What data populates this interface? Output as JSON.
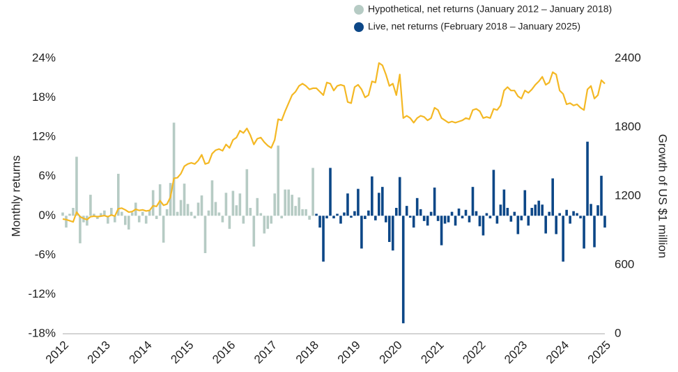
{
  "chart_data": {
    "type": "bar",
    "y_label": "Monthly returns",
    "y2_label": "Growth of US $1 million",
    "xlim": [
      2012,
      2025
    ],
    "xticks": [
      2012,
      2013,
      2014,
      2015,
      2016,
      2017,
      2018,
      2019,
      2020,
      2021,
      2022,
      2023,
      2024,
      2025
    ],
    "ylim": [
      -18,
      24
    ],
    "yticks": [
      {
        "value": -18,
        "label": "-18%"
      },
      {
        "value": -12,
        "label": "-12%"
      },
      {
        "value": -6,
        "label": "-6%"
      },
      {
        "value": 0,
        "label": "0%"
      },
      {
        "value": 6,
        "label": "6%"
      },
      {
        "value": 12,
        "label": "12%"
      },
      {
        "value": 18,
        "label": "18%"
      },
      {
        "value": 24,
        "label": "24%"
      }
    ],
    "y2lim": [
      0,
      2400
    ],
    "y2ticks": [
      0,
      600,
      1200,
      1800,
      2400
    ],
    "x": [
      "2012-01",
      "2012-02",
      "2012-03",
      "2012-04",
      "2012-05",
      "2012-06",
      "2012-07",
      "2012-08",
      "2012-09",
      "2012-10",
      "2012-11",
      "2012-12",
      "2013-01",
      "2013-02",
      "2013-03",
      "2013-04",
      "2013-05",
      "2013-06",
      "2013-07",
      "2013-08",
      "2013-09",
      "2013-10",
      "2013-11",
      "2013-12",
      "2014-01",
      "2014-02",
      "2014-03",
      "2014-04",
      "2014-05",
      "2014-06",
      "2014-07",
      "2014-08",
      "2014-09",
      "2014-10",
      "2014-11",
      "2014-12",
      "2015-01",
      "2015-02",
      "2015-03",
      "2015-04",
      "2015-05",
      "2015-06",
      "2015-07",
      "2015-08",
      "2015-09",
      "2015-10",
      "2015-11",
      "2015-12",
      "2016-01",
      "2016-02",
      "2016-03",
      "2016-04",
      "2016-05",
      "2016-06",
      "2016-07",
      "2016-08",
      "2016-09",
      "2016-10",
      "2016-11",
      "2016-12",
      "2017-01",
      "2017-02",
      "2017-03",
      "2017-04",
      "2017-05",
      "2017-06",
      "2017-07",
      "2017-08",
      "2017-09",
      "2017-10",
      "2017-11",
      "2017-12",
      "2018-01",
      "2018-02",
      "2018-03",
      "2018-04",
      "2018-05",
      "2018-06",
      "2018-07",
      "2018-08",
      "2018-09",
      "2018-10",
      "2018-11",
      "2018-12",
      "2019-01",
      "2019-02",
      "2019-03",
      "2019-04",
      "2019-05",
      "2019-06",
      "2019-07",
      "2019-08",
      "2019-09",
      "2019-10",
      "2019-11",
      "2019-12",
      "2020-01",
      "2020-02",
      "2020-03",
      "2020-04",
      "2020-05",
      "2020-06",
      "2020-07",
      "2020-08",
      "2020-09",
      "2020-10",
      "2020-11",
      "2020-12",
      "2021-01",
      "2021-02",
      "2021-03",
      "2021-04",
      "2021-05",
      "2021-06",
      "2021-07",
      "2021-08",
      "2021-09",
      "2021-10",
      "2021-11",
      "2021-12",
      "2022-01",
      "2022-02",
      "2022-03",
      "2022-04",
      "2022-05",
      "2022-06",
      "2022-07",
      "2022-08",
      "2022-09",
      "2022-10",
      "2022-11",
      "2022-12",
      "2023-01",
      "2023-02",
      "2023-03",
      "2023-04",
      "2023-05",
      "2023-06",
      "2023-07",
      "2023-08",
      "2023-09",
      "2023-10",
      "2023-11",
      "2023-12",
      "2024-01",
      "2024-02",
      "2024-03",
      "2024-04",
      "2024-05",
      "2024-06",
      "2024-07",
      "2024-08",
      "2024-09",
      "2024-10",
      "2024-11",
      "2024-12",
      "2025-01"
    ],
    "series": [
      {
        "name": "Hypothetical, net returns (January 2012 – January 2018)",
        "type": "bar",
        "color": "#b6cbc4",
        "values": [
          0.5,
          -1.8,
          0.3,
          1.2,
          9.0,
          -4.2,
          -1.0,
          -1.5,
          3.2,
          0.3,
          -0.5,
          0.4,
          0.8,
          -1.2,
          1.2,
          -1.0,
          6.4,
          0.6,
          -1.4,
          -2.1,
          0.5,
          2.0,
          -1.0,
          0.6,
          -1.2,
          0.8,
          3.9,
          -0.5,
          4.8,
          -4.1,
          1.0,
          5.0,
          14.2,
          0.6,
          2.4,
          4.9,
          1.8,
          0.6,
          -0.4,
          2.0,
          3.1,
          -5.7,
          0.8,
          5.4,
          2.1,
          0.5,
          -1.0,
          3.5,
          -2.0,
          3.8,
          1.6,
          3.4,
          -1.2,
          7.1,
          1.2,
          -4.7,
          2.7,
          0.4,
          -2.7,
          -2.0,
          -1.2,
          3.4,
          10.7,
          -0.4,
          4.0,
          4.0,
          3.2,
          1.5,
          2.8,
          1.0,
          1.0,
          -0.6,
          7.3,
          null,
          null,
          null,
          null,
          null,
          null,
          null,
          null,
          null,
          null,
          null,
          null,
          null,
          null,
          null,
          null,
          null,
          null,
          null,
          null,
          null,
          null,
          null,
          null,
          null,
          null,
          null,
          null,
          null,
          null,
          null,
          null,
          null,
          null,
          null,
          null,
          null,
          null,
          null,
          null,
          null,
          null,
          null,
          null,
          null,
          null,
          null,
          null,
          null,
          null,
          null,
          null,
          null,
          null,
          null,
          null,
          null,
          null,
          null,
          null,
          null,
          null,
          null,
          null,
          null,
          null,
          null,
          null,
          null,
          null,
          null,
          null,
          null,
          null,
          null,
          null,
          null,
          null,
          null,
          null,
          null,
          null,
          null,
          null
        ]
      },
      {
        "name": "Live, net returns (February 2018 – January 2025)",
        "type": "bar",
        "color": "#0c4787",
        "values": [
          null,
          null,
          null,
          null,
          null,
          null,
          null,
          null,
          null,
          null,
          null,
          null,
          null,
          null,
          null,
          null,
          null,
          null,
          null,
          null,
          null,
          null,
          null,
          null,
          null,
          null,
          null,
          null,
          null,
          null,
          null,
          null,
          null,
          null,
          null,
          null,
          null,
          null,
          null,
          null,
          null,
          null,
          null,
          null,
          null,
          null,
          null,
          null,
          null,
          null,
          null,
          null,
          null,
          null,
          null,
          null,
          null,
          null,
          null,
          null,
          null,
          null,
          null,
          null,
          null,
          null,
          null,
          null,
          null,
          null,
          null,
          null,
          null,
          0.3,
          -1.8,
          -7.0,
          -0.4,
          7.3,
          -0.4,
          0.3,
          -1.2,
          0.5,
          3.4,
          -0.3,
          0.7,
          4.1,
          -5.0,
          -0.5,
          0.8,
          6.0,
          -0.7,
          3.5,
          4.4,
          -1.0,
          -4.0,
          -5.3,
          1.2,
          5.9,
          -16.4,
          1.5,
          -0.3,
          -1.8,
          2.7,
          1.0,
          -0.8,
          -1.5,
          0.6,
          4.3,
          -0.8,
          -4.5,
          -1.2,
          -1.0,
          0.6,
          -1.5,
          1.1,
          -0.4,
          0.9,
          -1.0,
          4.4,
          0.7,
          -1.6,
          -3.0,
          0.4,
          -0.4,
          7.0,
          -1.2,
          1.7,
          4.0,
          1.2,
          -0.9,
          0.6,
          -2.8,
          -0.7,
          3.9,
          -1.5,
          1.2,
          1.7,
          2.3,
          1.7,
          -2.7,
          0.6,
          5.7,
          -2.8,
          0.4,
          -7.0,
          0.9,
          -1.2,
          0.7,
          0.4,
          -0.4,
          -5.0,
          11.3,
          1.8,
          -4.8,
          1.6,
          6.1,
          -1.8
        ]
      },
      {
        "type": "line",
        "axis": "y2",
        "color": "#f4b824",
        "values": [
          1000,
          995,
          985,
          975,
          1060,
          1020,
          1005,
          995,
          1020,
          1025,
          1020,
          1025,
          1030,
          1020,
          1035,
          1025,
          1090,
          1095,
          1080,
          1060,
          1065,
          1085,
          1075,
          1080,
          1070,
          1075,
          1115,
          1110,
          1160,
          1120,
          1130,
          1190,
          1355,
          1360,
          1395,
          1460,
          1480,
          1490,
          1480,
          1510,
          1560,
          1480,
          1490,
          1570,
          1600,
          1610,
          1595,
          1650,
          1620,
          1690,
          1710,
          1770,
          1750,
          1790,
          1730,
          1650,
          1700,
          1710,
          1670,
          1640,
          1620,
          1690,
          1870,
          1860,
          1940,
          2010,
          2080,
          2110,
          2160,
          2180,
          2160,
          2130,
          2140,
          2140,
          2110,
          2080,
          2190,
          2180,
          2120,
          2160,
          2170,
          2160,
          2020,
          2010,
          2150,
          2170,
          2130,
          2060,
          2080,
          2200,
          2190,
          2360,
          2340,
          2260,
          2160,
          2180,
          2080,
          2260,
          1880,
          1900,
          1880,
          1840,
          1880,
          1900,
          1890,
          1860,
          1880,
          1970,
          1950,
          1880,
          1860,
          1840,
          1850,
          1840,
          1850,
          1860,
          1880,
          1870,
          1950,
          1960,
          1940,
          1880,
          1890,
          1880,
          1960,
          1950,
          1990,
          2120,
          2150,
          2120,
          2120,
          2070,
          2050,
          2120,
          2100,
          2130,
          2170,
          2200,
          2240,
          2170,
          2190,
          2280,
          2260,
          2120,
          2090,
          2000,
          2010,
          1990,
          2000,
          1970,
          1950,
          2130,
          2160,
          2050,
          2080,
          2210,
          2180
        ]
      }
    ],
    "legend": "top-right"
  }
}
